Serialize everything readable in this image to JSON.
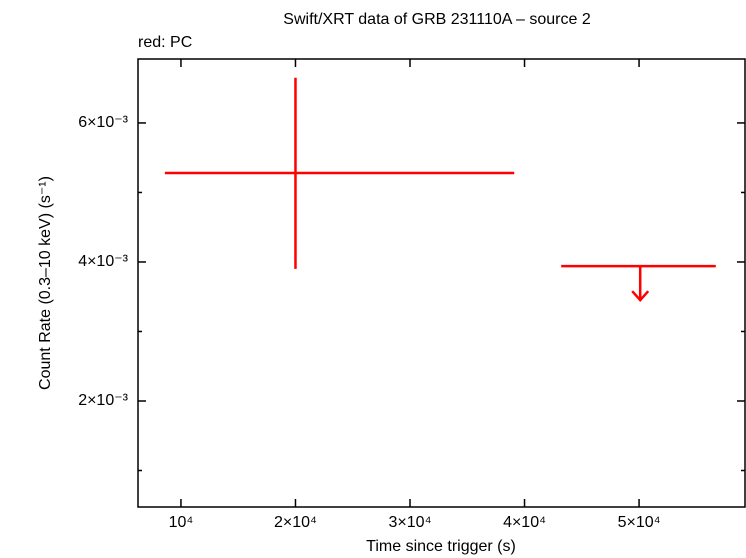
{
  "chart_data": {
    "type": "errorbar",
    "title": "Swift/XRT data of GRB 231110A – source 2",
    "xlabel": "Time since trigger (s)",
    "ylabel": "Count Rate (0.3–10 keV) (s⁻¹)",
    "xlim": [
      6250,
      59250
    ],
    "ylim": [
      0.000475,
      0.00692
    ],
    "xticks": [
      {
        "value": 10000,
        "label": "10⁴"
      },
      {
        "value": 20000,
        "label": "2×10⁴"
      },
      {
        "value": 30000,
        "label": "3×10⁴"
      },
      {
        "value": 40000,
        "label": "4×10⁴"
      },
      {
        "value": 50000,
        "label": "5×10⁴"
      }
    ],
    "yticks": [
      {
        "value": 0.002,
        "label": "2×10⁻³"
      },
      {
        "value": 0.004,
        "label": "4×10⁻³"
      },
      {
        "value": 0.006,
        "label": "6×10⁻³"
      }
    ],
    "yminor_ticks": [
      0.001,
      0.003,
      0.005
    ],
    "series": [
      {
        "name": "red: PC",
        "color": "#ff0000",
        "points": [
          {
            "x": 20000,
            "x_low": 8600,
            "x_high": 39100,
            "y": 0.00528,
            "y_low": 0.0039,
            "y_high": 0.00665
          }
        ],
        "upper_limits": [
          {
            "x": 50100,
            "x_low": 43200,
            "x_high": 56700,
            "y": 0.00394
          }
        ]
      }
    ]
  }
}
